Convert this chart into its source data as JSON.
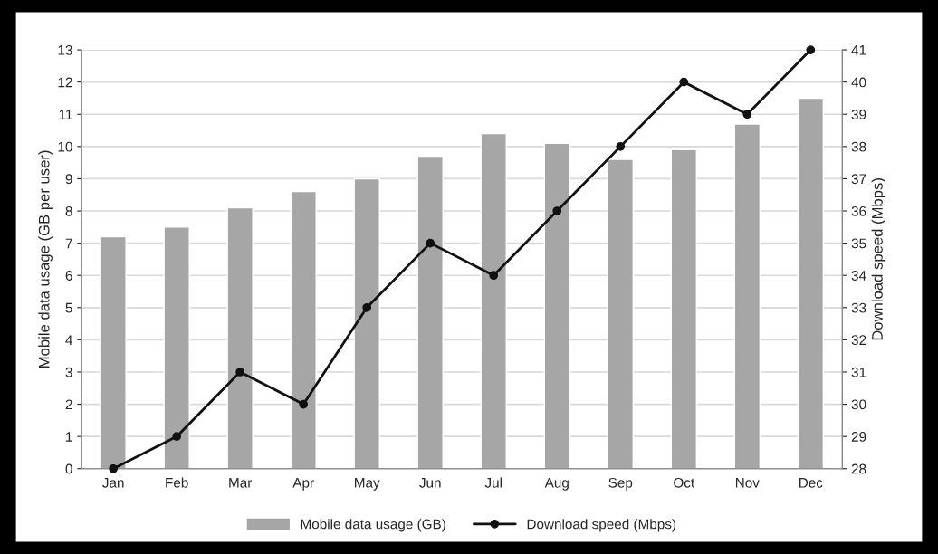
{
  "chart_data": {
    "type": "bar",
    "categories": [
      "Jan",
      "Feb",
      "Mar",
      "Apr",
      "May",
      "Jun",
      "Jul",
      "Aug",
      "Sep",
      "Oct",
      "Nov",
      "Dec"
    ],
    "ylabel": "Mobile data usage (GB per user)",
    "y2label": "Download speed (Mbps)",
    "series": [
      {
        "name": "Mobile data usage (GB)",
        "color": "#a6a6a6",
        "values": [
          7.2,
          7.5,
          8.1,
          8.6,
          9.0,
          9.7,
          10.4,
          10.1,
          9.6,
          9.9,
          10.7,
          11.5
        ]
      },
      {
        "name": "Download speed (Mbps)",
        "type": "line",
        "axis": "y2",
        "color": "#111111",
        "marker": "circle",
        "values": [
          28,
          29,
          31,
          30,
          33,
          35,
          34,
          36,
          38,
          40,
          39,
          41
        ]
      }
    ],
    "ylim": [
      0,
      13
    ],
    "yticks": [
      0,
      1,
      2,
      3,
      4,
      5,
      6,
      7,
      8,
      9,
      10,
      11,
      12,
      13
    ],
    "y2lim": [
      28,
      41
    ],
    "y2ticks": [
      28,
      29,
      30,
      31,
      32,
      33,
      34,
      35,
      36,
      37,
      38,
      39,
      40,
      41
    ],
    "grid": "y",
    "legend": "bottom"
  }
}
